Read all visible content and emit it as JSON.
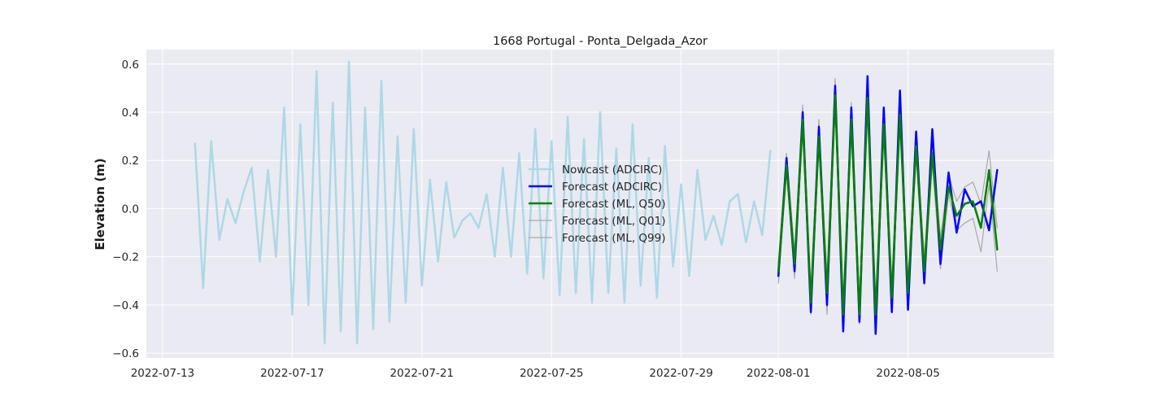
{
  "chart_data": {
    "type": "line",
    "title": "1668 Portugal - Ponta_Delgada_Azor",
    "xlabel": "",
    "ylabel": "Elevation (m)",
    "xlim": [
      "2022-07-12T12:00",
      "2022-08-09T12:00"
    ],
    "ylim": [
      -0.62,
      0.66
    ],
    "x_ticks": [
      "2022-07-13",
      "2022-07-17",
      "2022-07-21",
      "2022-07-25",
      "2022-07-29",
      "2022-08-01",
      "2022-08-05"
    ],
    "y_ticks": [
      -0.6,
      -0.4,
      -0.2,
      0.0,
      0.2,
      0.4,
      0.6
    ],
    "y_tick_labels": [
      "−0.6",
      "−0.4",
      "−0.2",
      "0.0",
      "0.2",
      "0.4",
      "0.6"
    ],
    "grid": true,
    "legend_position": "center-right",
    "colors": {
      "plot_background": "#eaeaf2",
      "grid": "#ffffff",
      "nowcast": "#add8e6",
      "forecast_adcirc": "#0000ff",
      "forecast_ml_q50": "#008000",
      "forecast_ml_q01": "#a9a9a9",
      "forecast_ml_q99": "#a9a9a9"
    },
    "series": [
      {
        "name": "Nowcast (ADCIRC)",
        "key": "nowcast",
        "width": 2.5,
        "x": [
          "2022-07-14T00:00",
          "2022-07-14T06:00",
          "2022-07-14T12:00",
          "2022-07-14T18:00",
          "2022-07-15T00:00",
          "2022-07-15T06:00",
          "2022-07-15T12:00",
          "2022-07-15T18:00",
          "2022-07-16T00:00",
          "2022-07-16T06:00",
          "2022-07-16T12:00",
          "2022-07-16T18:00",
          "2022-07-17T00:00",
          "2022-07-17T06:00",
          "2022-07-17T12:00",
          "2022-07-17T18:00",
          "2022-07-18T00:00",
          "2022-07-18T06:00",
          "2022-07-18T12:00",
          "2022-07-18T18:00",
          "2022-07-19T00:00",
          "2022-07-19T06:00",
          "2022-07-19T12:00",
          "2022-07-19T18:00",
          "2022-07-20T00:00",
          "2022-07-20T06:00",
          "2022-07-20T12:00",
          "2022-07-20T18:00",
          "2022-07-21T00:00",
          "2022-07-21T06:00",
          "2022-07-21T12:00",
          "2022-07-21T18:00",
          "2022-07-22T00:00",
          "2022-07-22T06:00",
          "2022-07-22T12:00",
          "2022-07-22T18:00",
          "2022-07-23T00:00",
          "2022-07-23T06:00",
          "2022-07-23T12:00",
          "2022-07-23T18:00",
          "2022-07-24T00:00",
          "2022-07-24T06:00",
          "2022-07-24T12:00",
          "2022-07-24T18:00",
          "2022-07-25T00:00",
          "2022-07-25T06:00",
          "2022-07-25T12:00",
          "2022-07-25T18:00",
          "2022-07-26T00:00",
          "2022-07-26T06:00",
          "2022-07-26T12:00",
          "2022-07-26T18:00",
          "2022-07-27T00:00",
          "2022-07-27T06:00",
          "2022-07-27T12:00",
          "2022-07-27T18:00",
          "2022-07-28T00:00",
          "2022-07-28T06:00",
          "2022-07-28T12:00",
          "2022-07-28T18:00",
          "2022-07-29T00:00",
          "2022-07-29T06:00",
          "2022-07-29T12:00",
          "2022-07-29T18:00",
          "2022-07-30T00:00",
          "2022-07-30T06:00",
          "2022-07-30T12:00",
          "2022-07-30T18:00",
          "2022-07-31T00:00",
          "2022-07-31T06:00",
          "2022-07-31T12:00",
          "2022-07-31T18:00"
        ],
        "y": [
          0.27,
          -0.33,
          0.28,
          -0.13,
          0.04,
          -0.06,
          0.07,
          0.17,
          -0.22,
          0.16,
          -0.2,
          0.42,
          -0.44,
          0.35,
          -0.4,
          0.57,
          -0.56,
          0.44,
          -0.51,
          0.61,
          -0.56,
          0.42,
          -0.5,
          0.53,
          -0.47,
          0.3,
          -0.39,
          0.33,
          -0.32,
          0.12,
          -0.22,
          0.11,
          -0.12,
          -0.05,
          -0.02,
          -0.08,
          0.06,
          -0.2,
          0.17,
          -0.2,
          0.23,
          -0.27,
          0.33,
          -0.29,
          0.28,
          -0.36,
          0.38,
          -0.35,
          0.29,
          -0.39,
          0.4,
          -0.35,
          0.25,
          -0.39,
          0.35,
          -0.32,
          0.21,
          -0.37,
          0.26,
          -0.24,
          0.1,
          -0.28,
          0.16,
          -0.13,
          -0.03,
          -0.15,
          0.03,
          0.06,
          -0.14,
          0.03,
          -0.11,
          0.24
        ]
      },
      {
        "name": "Forecast (ADCIRC)",
        "key": "forecast_adcirc",
        "width": 2.5,
        "x": [
          "2022-08-01T00:00",
          "2022-08-01T06:00",
          "2022-08-01T12:00",
          "2022-08-01T18:00",
          "2022-08-02T00:00",
          "2022-08-02T06:00",
          "2022-08-02T12:00",
          "2022-08-02T18:00",
          "2022-08-03T00:00",
          "2022-08-03T06:00",
          "2022-08-03T12:00",
          "2022-08-03T18:00",
          "2022-08-04T00:00",
          "2022-08-04T06:00",
          "2022-08-04T12:00",
          "2022-08-04T18:00",
          "2022-08-05T00:00",
          "2022-08-05T06:00",
          "2022-08-05T12:00",
          "2022-08-05T18:00",
          "2022-08-06T00:00",
          "2022-08-06T06:00",
          "2022-08-06T12:00",
          "2022-08-06T18:00",
          "2022-08-07T00:00",
          "2022-08-07T06:00",
          "2022-08-07T12:00",
          "2022-08-07T18:00"
        ],
        "y": [
          -0.28,
          0.21,
          -0.26,
          0.4,
          -0.43,
          0.34,
          -0.4,
          0.51,
          -0.51,
          0.42,
          -0.47,
          0.55,
          -0.52,
          0.42,
          -0.43,
          0.49,
          -0.42,
          0.32,
          -0.31,
          0.33,
          -0.23,
          0.15,
          -0.1,
          0.08,
          0.01,
          0.03,
          -0.09,
          0.16
        ]
      },
      {
        "name": "Forecast (ML, Q50)",
        "key": "forecast_ml_q50",
        "width": 2.5,
        "x": [
          "2022-08-01T00:00",
          "2022-08-01T06:00",
          "2022-08-01T12:00",
          "2022-08-01T18:00",
          "2022-08-02T00:00",
          "2022-08-02T06:00",
          "2022-08-02T12:00",
          "2022-08-02T18:00",
          "2022-08-03T00:00",
          "2022-08-03T06:00",
          "2022-08-03T12:00",
          "2022-08-03T18:00",
          "2022-08-04T00:00",
          "2022-08-04T06:00",
          "2022-08-04T12:00",
          "2022-08-04T18:00",
          "2022-08-05T00:00",
          "2022-08-05T06:00",
          "2022-08-05T12:00",
          "2022-08-05T18:00",
          "2022-08-06T00:00",
          "2022-08-06T06:00",
          "2022-08-06T12:00",
          "2022-08-06T18:00",
          "2022-08-07T00:00",
          "2022-08-07T06:00",
          "2022-08-07T12:00",
          "2022-08-07T18:00"
        ],
        "y": [
          -0.26,
          0.18,
          -0.23,
          0.37,
          -0.39,
          0.3,
          -0.35,
          0.47,
          -0.44,
          0.37,
          -0.44,
          0.46,
          -0.44,
          0.35,
          -0.37,
          0.39,
          -0.35,
          0.26,
          -0.26,
          0.23,
          -0.17,
          0.09,
          -0.03,
          0.02,
          0.03,
          -0.08,
          0.16,
          -0.17
        ]
      },
      {
        "name": "Forecast (ML, Q01)",
        "key": "forecast_ml_q01",
        "width": 1.2,
        "x": [
          "2022-08-01T00:00",
          "2022-08-01T06:00",
          "2022-08-01T12:00",
          "2022-08-01T18:00",
          "2022-08-02T00:00",
          "2022-08-02T06:00",
          "2022-08-02T12:00",
          "2022-08-02T18:00",
          "2022-08-03T00:00",
          "2022-08-03T06:00",
          "2022-08-03T12:00",
          "2022-08-03T18:00",
          "2022-08-04T00:00",
          "2022-08-04T06:00",
          "2022-08-04T12:00",
          "2022-08-04T18:00",
          "2022-08-05T00:00",
          "2022-08-05T06:00",
          "2022-08-05T12:00",
          "2022-08-05T18:00",
          "2022-08-06T00:00",
          "2022-08-06T06:00",
          "2022-08-06T12:00",
          "2022-08-06T18:00",
          "2022-08-07T00:00",
          "2022-08-07T06:00",
          "2022-08-07T12:00",
          "2022-08-07T18:00"
        ],
        "y": [
          -0.31,
          0.15,
          -0.29,
          0.33,
          -0.44,
          0.27,
          -0.44,
          0.43,
          -0.5,
          0.34,
          -0.48,
          0.43,
          -0.5,
          0.31,
          -0.42,
          0.35,
          -0.4,
          0.22,
          -0.31,
          0.19,
          -0.25,
          0.06,
          -0.09,
          -0.06,
          -0.04,
          -0.18,
          0.1,
          -0.26
        ]
      },
      {
        "name": "Forecast (ML, Q99)",
        "key": "forecast_ml_q99",
        "width": 1.2,
        "x": [
          "2022-08-01T00:00",
          "2022-08-01T06:00",
          "2022-08-01T12:00",
          "2022-08-01T18:00",
          "2022-08-02T00:00",
          "2022-08-02T06:00",
          "2022-08-02T12:00",
          "2022-08-02T18:00",
          "2022-08-03T00:00",
          "2022-08-03T06:00",
          "2022-08-03T12:00",
          "2022-08-03T18:00",
          "2022-08-04T00:00",
          "2022-08-04T06:00",
          "2022-08-04T12:00",
          "2022-08-04T18:00",
          "2022-08-05T00:00",
          "2022-08-05T06:00",
          "2022-08-05T12:00",
          "2022-08-05T18:00",
          "2022-08-06T00:00",
          "2022-08-06T06:00",
          "2022-08-06T12:00",
          "2022-08-06T18:00",
          "2022-08-07T00:00",
          "2022-08-07T06:00",
          "2022-08-07T12:00",
          "2022-08-07T18:00"
        ],
        "y": [
          -0.22,
          0.23,
          -0.18,
          0.43,
          -0.33,
          0.37,
          -0.28,
          0.54,
          -0.38,
          0.44,
          -0.38,
          0.5,
          -0.38,
          0.41,
          -0.31,
          0.45,
          -0.29,
          0.31,
          -0.2,
          0.28,
          -0.12,
          0.14,
          0.03,
          0.09,
          0.11,
          0.02,
          0.24,
          -0.08
        ]
      }
    ]
  }
}
